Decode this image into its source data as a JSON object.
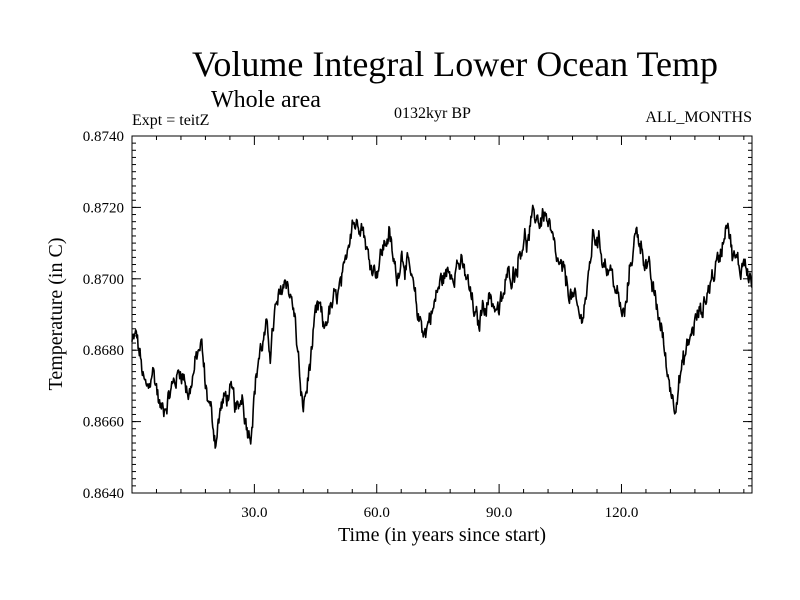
{
  "chart_data": {
    "type": "line",
    "title": "Volume Integral Lower Ocean Temp",
    "subtitle": "Whole area",
    "experiment_label": "Expt = teitZ",
    "period_label": "0132kyr BP",
    "months_label": "ALL_MONTHS",
    "xlabel": "Time (in years since start)",
    "ylabel": "Temperature (in C)",
    "xlim": [
      0,
      152
    ],
    "ylim": [
      0.864,
      0.874
    ],
    "x_ticks": [
      30,
      60,
      90,
      120
    ],
    "x_tick_labels": [
      "30.0",
      "60.0",
      "90.0",
      "120.0"
    ],
    "y_ticks": [
      0.864,
      0.866,
      0.868,
      0.87,
      0.872,
      0.874
    ],
    "y_tick_labels": [
      "0.8640",
      "0.8660",
      "0.8680",
      "0.8700",
      "0.8720",
      "0.8740"
    ],
    "grid": false,
    "series": [
      {
        "name": "Volume Integral Lower Ocean Temp",
        "x": [
          0,
          1,
          2,
          3,
          4,
          5,
          6,
          7,
          8,
          10,
          12,
          14,
          16,
          17,
          18,
          19,
          20,
          20.5,
          22,
          24,
          26,
          27,
          28,
          29,
          30,
          31,
          32,
          33,
          34,
          35,
          36,
          37,
          38,
          39,
          40,
          41,
          41.5,
          42,
          43,
          44,
          45,
          46,
          47,
          48,
          50,
          52,
          53,
          54,
          55,
          56,
          57,
          58,
          60,
          62,
          63,
          64,
          65,
          66,
          68,
          70,
          72,
          73,
          74,
          75,
          76,
          78,
          80,
          82,
          84,
          85,
          86,
          88,
          90,
          92,
          94,
          96,
          97,
          98,
          99,
          100,
          101,
          102,
          103,
          104,
          106,
          108,
          110,
          112,
          113,
          114,
          115,
          116,
          118,
          120,
          121,
          122,
          123,
          124,
          126,
          128,
          130,
          131,
          132,
          133,
          134,
          135,
          136,
          138,
          140,
          142,
          144,
          145,
          146,
          147,
          148,
          149,
          150,
          151,
          152
        ],
        "y": [
          0.8682,
          0.8684,
          0.8678,
          0.867,
          0.8668,
          0.8675,
          0.867,
          0.8663,
          0.8665,
          0.867,
          0.8675,
          0.8668,
          0.8678,
          0.8682,
          0.867,
          0.8665,
          0.8658,
          0.8655,
          0.8665,
          0.8668,
          0.8662,
          0.8668,
          0.866,
          0.8657,
          0.8668,
          0.8678,
          0.8682,
          0.8685,
          0.868,
          0.869,
          0.8693,
          0.8698,
          0.87,
          0.8695,
          0.8688,
          0.8675,
          0.8665,
          0.8664,
          0.867,
          0.868,
          0.8688,
          0.8692,
          0.8685,
          0.869,
          0.8694,
          0.87,
          0.871,
          0.8718,
          0.8715,
          0.8718,
          0.8713,
          0.8705,
          0.8703,
          0.871,
          0.8713,
          0.8705,
          0.87,
          0.8708,
          0.8702,
          0.869,
          0.8685,
          0.869,
          0.8692,
          0.8697,
          0.87,
          0.8702,
          0.8705,
          0.87,
          0.869,
          0.8686,
          0.8693,
          0.8695,
          0.869,
          0.87,
          0.8703,
          0.8712,
          0.871,
          0.8715,
          0.8718,
          0.8716,
          0.8719,
          0.8715,
          0.871,
          0.8705,
          0.87,
          0.8695,
          0.8688,
          0.87,
          0.8712,
          0.8712,
          0.8708,
          0.8705,
          0.87,
          0.869,
          0.869,
          0.8703,
          0.871,
          0.8713,
          0.8705,
          0.8695,
          0.8685,
          0.8675,
          0.867,
          0.8665,
          0.8672,
          0.8675,
          0.868,
          0.8688,
          0.8692,
          0.87,
          0.8706,
          0.8712,
          0.8719,
          0.8708,
          0.8705,
          0.8702,
          0.8706,
          0.8703,
          0.8698
        ]
      }
    ]
  }
}
